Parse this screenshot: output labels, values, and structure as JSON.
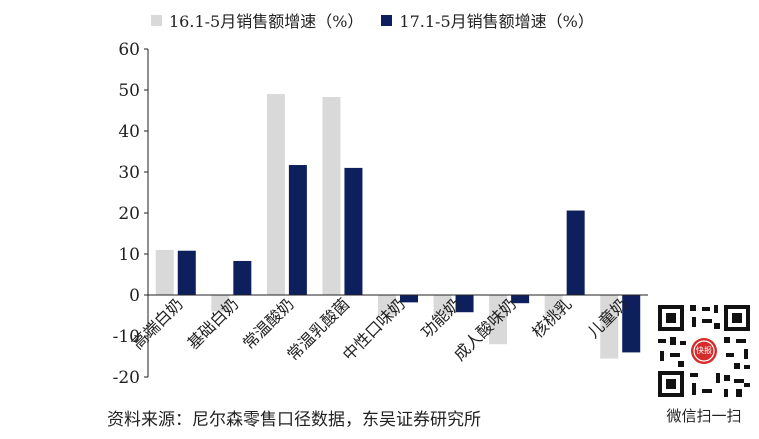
{
  "chart_data": {
    "type": "bar",
    "categories": [
      "高端白奶",
      "基础白奶",
      "常温酸奶",
      "常温乳酸菌",
      "中性口味奶",
      "功能奶",
      "成人酸味奶",
      "核桃乳",
      "儿童奶"
    ],
    "series": [
      {
        "name": "16.1-5月销售额增速（%）",
        "color": "#d9d9d9",
        "values": [
          11,
          -4,
          49,
          48.3,
          -5,
          -5,
          -12,
          -5,
          -15.5
        ]
      },
      {
        "name": "17.1-5月销售额增速（%）",
        "color": "#0d1f5c",
        "values": [
          10.8,
          8.3,
          31.7,
          31,
          -1.8,
          -4.2,
          -2,
          20.6,
          -14
        ]
      }
    ],
    "yticks": [
      "60",
      "50",
      "40",
      "30",
      "20",
      "10",
      "0",
      "-10",
      "-20"
    ],
    "ylim": [
      -20,
      60
    ],
    "grid": false,
    "legend_position": "top"
  },
  "footer": {
    "source_text": "资料来源：尼尔森零售口径数据，东吴证券研究所",
    "qr_caption": "微信扫一扫",
    "qr_badge": "快报"
  }
}
